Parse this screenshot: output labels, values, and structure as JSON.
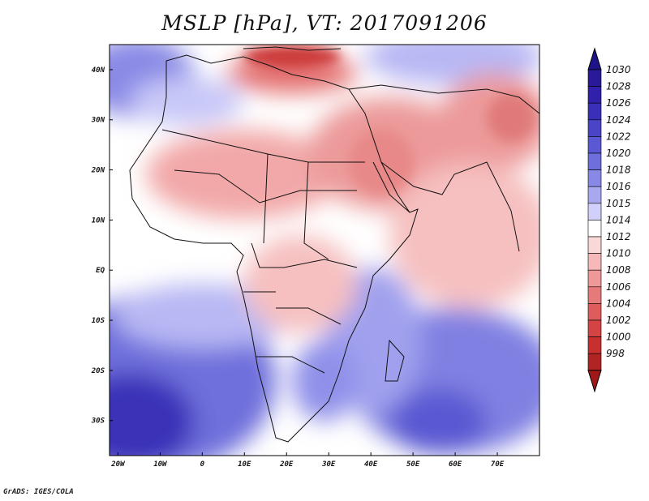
{
  "title": "MSLP [hPa], VT: 2017091206",
  "credit": "GrADS: IGES/COLA",
  "map": {
    "lon_range": [
      -22,
      80
    ],
    "lat_range": [
      -37,
      45
    ],
    "lat_ticks": [
      {
        "value": 40,
        "label": "40N"
      },
      {
        "value": 30,
        "label": "30N"
      },
      {
        "value": 20,
        "label": "20N"
      },
      {
        "value": 10,
        "label": "10N"
      },
      {
        "value": 0,
        "label": "EQ"
      },
      {
        "value": -10,
        "label": "10S"
      },
      {
        "value": -20,
        "label": "20S"
      },
      {
        "value": -30,
        "label": "30S"
      }
    ],
    "lon_ticks": [
      {
        "value": -20,
        "label": "20W"
      },
      {
        "value": -10,
        "label": "10W"
      },
      {
        "value": 0,
        "label": "0"
      },
      {
        "value": 10,
        "label": "10E"
      },
      {
        "value": 20,
        "label": "20E"
      },
      {
        "value": 30,
        "label": "30E"
      },
      {
        "value": 40,
        "label": "40E"
      },
      {
        "value": 50,
        "label": "50E"
      },
      {
        "value": 60,
        "label": "60E"
      },
      {
        "value": 70,
        "label": "70E"
      }
    ]
  },
  "colorbar": {
    "levels": [
      {
        "label": "1030",
        "color": "#2a1a9a"
      },
      {
        "label": "1028",
        "color": "#3020aa"
      },
      {
        "label": "1026",
        "color": "#3a30b8"
      },
      {
        "label": "1024",
        "color": "#4a44c8"
      },
      {
        "label": "1022",
        "color": "#5a58d2"
      },
      {
        "label": "1020",
        "color": "#6e6edc"
      },
      {
        "label": "1018",
        "color": "#8888e6"
      },
      {
        "label": "1016",
        "color": "#a8a8f0"
      },
      {
        "label": "1015",
        "color": "#d0d0fa"
      },
      {
        "label": "1014",
        "color": "#ffffff"
      },
      {
        "label": "1012",
        "color": "#fad8d8"
      },
      {
        "label": "1010",
        "color": "#f6b8b8"
      },
      {
        "label": "1008",
        "color": "#ee9898"
      },
      {
        "label": "1006",
        "color": "#e67a7a"
      },
      {
        "label": "1004",
        "color": "#de5c5c"
      },
      {
        "label": "1002",
        "color": "#d44444"
      },
      {
        "label": "1000",
        "color": "#c83030"
      },
      {
        "label": "998",
        "color": "#b02424"
      }
    ],
    "top_arrow_color": "#1e1488",
    "bottom_arrow_color": "#a01818"
  }
}
